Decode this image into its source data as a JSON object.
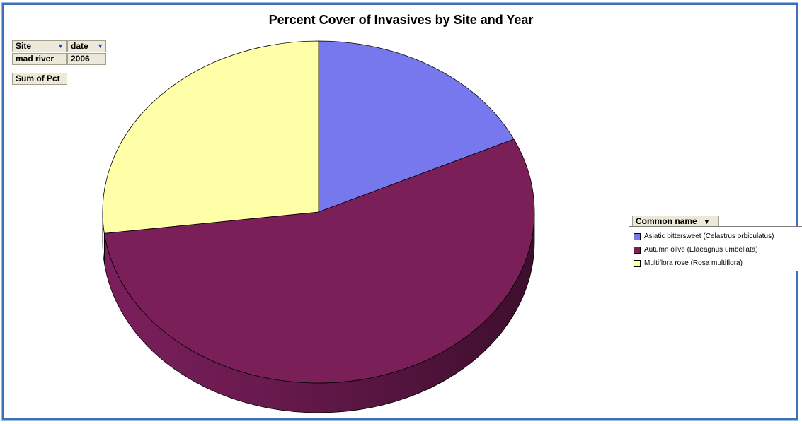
{
  "title": "Percent Cover of Invasives by Site and Year",
  "filters": {
    "site_label": "Site",
    "date_label": "date",
    "site_value": "mad river",
    "date_value": "2006",
    "data_field": "Sum of Pct"
  },
  "legend": {
    "title": "Common name"
  },
  "chart_data": {
    "type": "pie",
    "title": "Percent Cover of Invasives by Site and Year",
    "slices": [
      {
        "label": "Asiatic bittersweet (Celastrus orbiculatus)",
        "value": 18,
        "color": "#7777ee"
      },
      {
        "label": "Autumn olive (Elaeagnus umbellata)",
        "value": 55,
        "color": "#7a1f57"
      },
      {
        "label": "Multiflora rose (Rosa multiflora)",
        "value": 27,
        "color": "#ffffa8"
      }
    ],
    "legend_position": "right"
  },
  "colors": {
    "frame": "#3f6fb6",
    "field_bg": "#ece9d8"
  }
}
